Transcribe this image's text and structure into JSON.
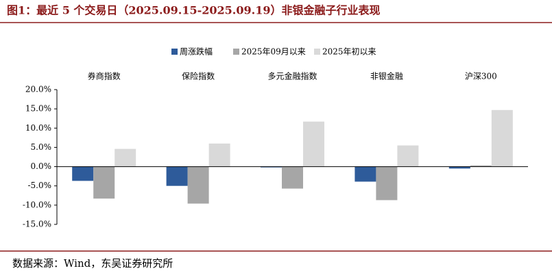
{
  "chart_data": {
    "type": "bar",
    "title": "图1：最近 5 个交易日（2025.09.15-2025.09.19）非银金融子行业表现",
    "source": "数据来源：Wind，东吴证券研究所",
    "categories": [
      "券商指数",
      "保险指数",
      "多元金融指数",
      "非银金融",
      "沪深300"
    ],
    "series": [
      {
        "name": "周涨跌幅",
        "color": "#2e5b9a",
        "values": [
          -3.7,
          -5.0,
          -0.2,
          -3.9,
          -0.5
        ]
      },
      {
        "name": "2025年09月以来",
        "color": "#a6a6a6",
        "values": [
          -8.3,
          -9.6,
          -5.7,
          -8.7,
          0.3
        ]
      },
      {
        "name": "2025年初以来",
        "color": "#d9d9d9",
        "values": [
          4.6,
          6.0,
          11.7,
          5.5,
          14.7
        ]
      }
    ],
    "ylim": [
      -15,
      20
    ],
    "yticks": [
      {
        "value": -15,
        "label": "-15.0%"
      },
      {
        "value": -10,
        "label": "-10.0%"
      },
      {
        "value": -5,
        "label": "-5.0%"
      },
      {
        "value": 0,
        "label": "0.0%"
      },
      {
        "value": 5,
        "label": "5.0%"
      },
      {
        "value": 10,
        "label": "10.0%"
      },
      {
        "value": 15,
        "label": "15.0%"
      },
      {
        "value": 20,
        "label": "20.0%"
      }
    ],
    "legend": "top"
  }
}
